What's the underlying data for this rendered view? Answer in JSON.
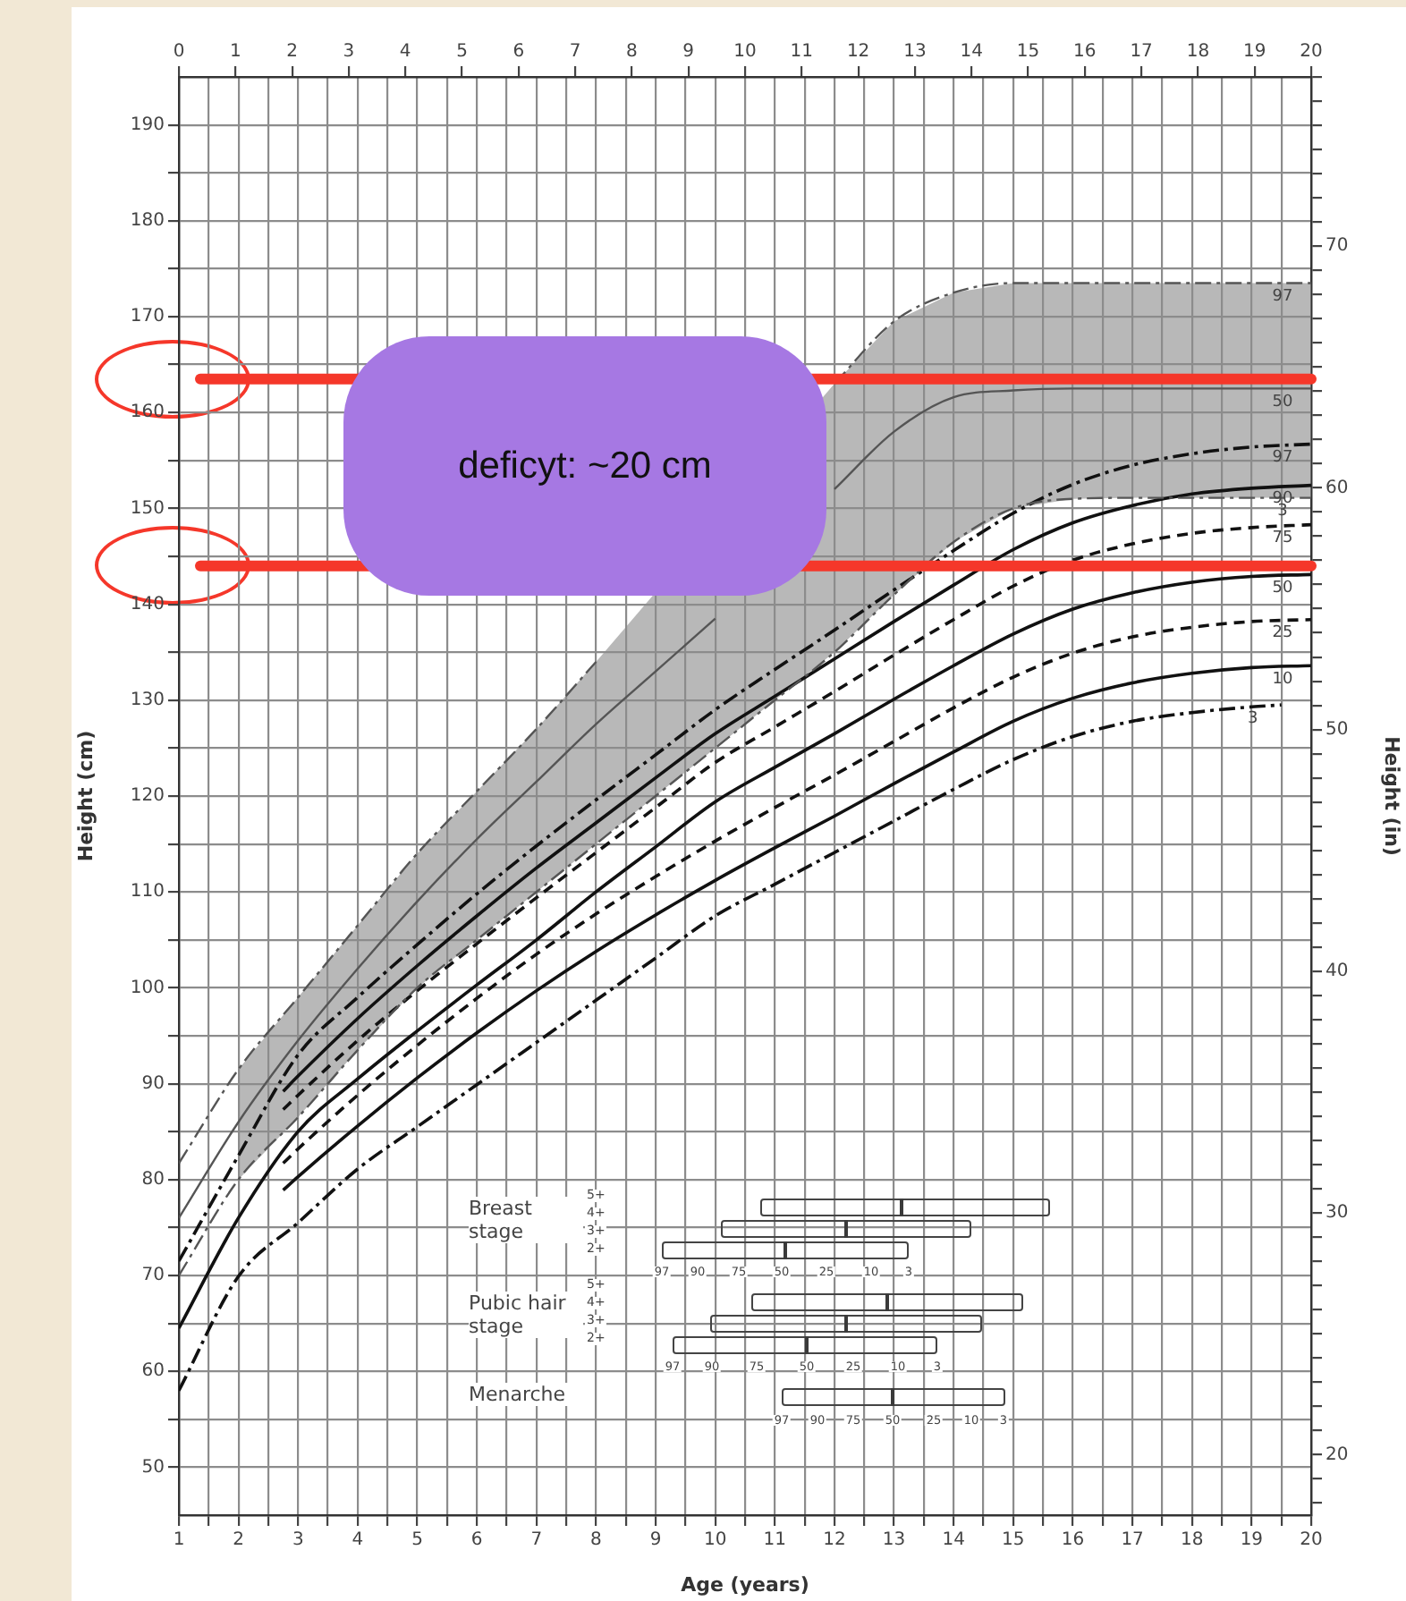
{
  "chart_data": {
    "type": "line",
    "xlabel": "Age (years)",
    "ylabel": "Height (cm)",
    "y2label": "Height (in)",
    "xlim": [
      1,
      20
    ],
    "ylim": [
      45,
      195
    ],
    "x2lim": [
      0,
      20
    ],
    "y2lim": [
      17.5,
      77
    ],
    "xticks": [
      1,
      {
        "value": 1.5,
        "label": null
      },
      2,
      {
        "value": 2.5,
        "label": null
      },
      3,
      {
        "value": 3.5,
        "label": null
      },
      4,
      {
        "value": 4.5,
        "label": null
      },
      5,
      {
        "value": 5.5,
        "label": null
      },
      6,
      {
        "value": 6.5,
        "label": null
      },
      7,
      {
        "value": 7.5,
        "label": null
      },
      8,
      {
        "value": 8.5,
        "label": null
      },
      9,
      {
        "value": 9.5,
        "label": null
      },
      10,
      {
        "value": 10.5,
        "label": null
      },
      11,
      {
        "value": 11.5,
        "label": null
      },
      12,
      {
        "value": 12.5,
        "label": null
      },
      13,
      {
        "value": 13.5,
        "label": null
      },
      14,
      {
        "value": 14.5,
        "label": null
      },
      15,
      {
        "value": 15.5,
        "label": null
      },
      16,
      {
        "value": 16.5,
        "label": null
      },
      17,
      {
        "value": 17.5,
        "label": null
      },
      18,
      {
        "value": 18.5,
        "label": null
      },
      19,
      {
        "value": 19.5,
        "label": null
      },
      20
    ],
    "x2ticks": [
      0,
      1,
      2,
      3,
      4,
      5,
      6,
      7,
      8,
      9,
      10,
      11,
      12,
      13,
      14,
      15,
      16,
      17,
      18,
      19,
      20
    ],
    "yticks": [
      50,
      {
        "value": 55,
        "label": null
      },
      60,
      {
        "value": 65,
        "label": null
      },
      70,
      {
        "value": 75,
        "label": null
      },
      80,
      {
        "value": 85,
        "label": null
      },
      90,
      {
        "value": 95,
        "label": null
      },
      100,
      {
        "value": 105,
        "label": null
      },
      110,
      {
        "value": 115,
        "label": null
      },
      120,
      {
        "value": 125,
        "label": null
      },
      130,
      {
        "value": 135,
        "label": null
      },
      140,
      {
        "value": 145,
        "label": null
      },
      150,
      {
        "value": 155,
        "label": null
      },
      160,
      {
        "value": 165,
        "label": null
      },
      170,
      {
        "value": 175,
        "label": null
      },
      180,
      {
        "value": 185,
        "label": null
      },
      190
    ],
    "y2ticks": [
      {
        "value": 18,
        "label": null
      },
      {
        "value": 19,
        "label": null
      },
      20,
      {
        "value": 21,
        "label": null
      },
      {
        "value": 22,
        "label": null
      },
      {
        "value": 23,
        "label": null
      },
      {
        "value": 24,
        "label": null
      },
      {
        "value": 25,
        "label": null
      },
      {
        "value": 26,
        "label": null
      },
      {
        "value": 27,
        "label": null
      },
      {
        "value": 28,
        "label": null
      },
      {
        "value": 29,
        "label": null
      },
      30,
      {
        "value": 31,
        "label": null
      },
      {
        "value": 32,
        "label": null
      },
      {
        "value": 33,
        "label": null
      },
      {
        "value": 34,
        "label": null
      },
      {
        "value": 35,
        "label": null
      },
      {
        "value": 36,
        "label": null
      },
      {
        "value": 37,
        "label": null
      },
      {
        "value": 38,
        "label": null
      },
      {
        "value": 39,
        "label": null
      },
      40,
      {
        "value": 41,
        "label": null
      },
      {
        "value": 42,
        "label": null
      },
      {
        "value": 43,
        "label": null
      },
      {
        "value": 44,
        "label": null
      },
      {
        "value": 45,
        "label": null
      },
      {
        "value": 46,
        "label": null
      },
      {
        "value": 47,
        "label": null
      },
      {
        "value": 48,
        "label": null
      },
      {
        "value": 49,
        "label": null
      },
      50,
      {
        "value": 51,
        "label": null
      },
      {
        "value": 52,
        "label": null
      },
      {
        "value": 53,
        "label": null
      },
      {
        "value": 54,
        "label": null
      },
      {
        "value": 55,
        "label": null
      },
      {
        "value": 56,
        "label": null
      },
      {
        "value": 57,
        "label": null
      },
      {
        "value": 58,
        "label": null
      },
      {
        "value": 59,
        "label": null
      },
      60,
      {
        "value": 61,
        "label": null
      },
      {
        "value": 62,
        "label": null
      },
      {
        "value": 63,
        "label": null
      },
      {
        "value": 64,
        "label": null
      },
      {
        "value": 65,
        "label": null
      },
      {
        "value": 66,
        "label": null
      },
      {
        "value": 67,
        "label": null
      },
      {
        "value": 68,
        "label": null
      },
      {
        "value": 69,
        "label": null
      },
      70,
      {
        "value": 71,
        "label": null
      },
      {
        "value": 72,
        "label": null
      },
      {
        "value": 73,
        "label": null
      },
      {
        "value": 74,
        "label": null
      },
      {
        "value": 75,
        "label": null
      },
      {
        "value": 76,
        "label": null
      },
      {
        "value": 77,
        "label": null
      }
    ],
    "grid": true,
    "legend": false,
    "series": [
      {
        "name": "97",
        "color": "#555555",
        "line_style": "dotted",
        "x": [
          1,
          2,
          3,
          4,
          5,
          6,
          7,
          8,
          9,
          10,
          11,
          12,
          13,
          14,
          15,
          16,
          17,
          18,
          19,
          20
        ],
        "values": [
          81.7,
          91.5,
          99,
          106.5,
          114,
          120.5,
          127,
          134,
          null,
          null,
          null,
          163,
          169.5,
          172.5,
          173.5,
          173.5,
          173.5,
          173.5,
          173.5,
          173.5
        ]
      },
      {
        "name": "50",
        "color": "#555555",
        "line_style": "solid",
        "x": [
          1,
          2,
          3,
          4,
          5,
          6,
          7,
          8,
          9,
          10,
          11,
          12,
          13,
          14,
          15,
          16,
          17,
          18,
          19,
          20
        ],
        "values": [
          76,
          86,
          94.5,
          102,
          109,
          115.5,
          121.5,
          127.5,
          133,
          138.5,
          null,
          152,
          158,
          161.6,
          162.3,
          162.5,
          162.5,
          162.5,
          162.5,
          162.5
        ],
        "lower": [
          null,
          80,
          86.5,
          93.5,
          100,
          105,
          110,
          115,
          null,
          null,
          null,
          135,
          141,
          146.5,
          150,
          151,
          151.1,
          151.1,
          151.1,
          151.1
        ],
        "upper": [
          null,
          91.5,
          99,
          106.5,
          114,
          120.5,
          127,
          134,
          null,
          null,
          null,
          163,
          169.5,
          172.5,
          173.5,
          173.5,
          173.5,
          173.5,
          173.5,
          173.5
        ]
      },
      {
        "name": "3",
        "color": "#555555",
        "line_style": "dotted",
        "x": [
          1,
          2,
          3,
          4,
          5,
          6,
          7,
          8,
          9,
          10,
          11,
          12,
          13,
          14,
          15,
          16,
          17,
          18,
          19,
          20
        ],
        "values": [
          70,
          80,
          86.5,
          93.5,
          100,
          105,
          110,
          115,
          120,
          125,
          130,
          135,
          141,
          146.5,
          150,
          151,
          151.1,
          151.1,
          151.1,
          151.1
        ]
      },
      {
        "name": "97",
        "color": "#111111",
        "line_style": "dotted",
        "x": [
          1,
          2,
          3,
          4,
          5,
          6,
          7,
          8,
          9,
          10,
          11,
          12,
          13,
          14,
          15,
          16,
          17,
          18,
          19,
          20
        ],
        "values": [
          71.5,
          82.5,
          93,
          99,
          104.5,
          109.8,
          114.8,
          119.6,
          124.3,
          129,
          133.2,
          137.3,
          141.5,
          145.6,
          149.5,
          152.5,
          154.5,
          155.7,
          156.4,
          156.7
        ]
      },
      {
        "name": "90",
        "color": "#111111",
        "line_style": "solid",
        "x": [
          2.75,
          3,
          4,
          5,
          6,
          7,
          8,
          9,
          10,
          11,
          12,
          13,
          14,
          15,
          16,
          17,
          18,
          19,
          20
        ],
        "values": [
          89.2,
          90.8,
          96.8,
          102.3,
          107.5,
          112.5,
          117.2,
          121.9,
          126.5,
          130.4,
          134.3,
          138.2,
          142.0,
          145.7,
          148.5,
          150.3,
          151.5,
          152.1,
          152.4
        ]
      },
      {
        "name": "75",
        "color": "#111111",
        "line_style": "dashed",
        "x": [
          2.75,
          3,
          4,
          5,
          6,
          7,
          8,
          9,
          10,
          11,
          12,
          13,
          14,
          15,
          16,
          17,
          18,
          19,
          20
        ],
        "values": [
          87.3,
          88.8,
          94.5,
          99.7,
          104.6,
          109.4,
          114.1,
          118.8,
          123.5,
          127.2,
          130.9,
          134.7,
          138.4,
          141.9,
          144.6,
          146.3,
          147.4,
          148.0,
          148.3
        ]
      },
      {
        "name": "50",
        "color": "#111111",
        "line_style": "solid",
        "x": [
          1,
          2,
          3,
          4,
          5,
          6,
          7,
          8,
          9,
          10,
          11,
          12,
          13,
          14,
          15,
          16,
          17,
          18,
          19,
          20
        ],
        "values": [
          64.5,
          76,
          85,
          90.5,
          95.5,
          100.3,
          105,
          110,
          114.7,
          119.4,
          123.0,
          126.5,
          130.1,
          133.6,
          136.9,
          139.5,
          141.2,
          142.3,
          142.9,
          143.1
        ]
      },
      {
        "name": "25",
        "color": "#111111",
        "line_style": "dashed",
        "x": [
          2.75,
          3,
          4,
          5,
          6,
          7,
          8,
          9,
          10,
          11,
          12,
          13,
          14,
          15,
          16,
          17,
          18,
          19,
          20
        ],
        "values": [
          81.7,
          83.2,
          88.8,
          94,
          98.9,
          103.5,
          107.7,
          111.6,
          115.3,
          118.8,
          122.2,
          125.7,
          129.2,
          132.4,
          134.9,
          136.6,
          137.6,
          138.2,
          138.4
        ]
      },
      {
        "name": "10",
        "color": "#111111",
        "line_style": "solid",
        "x": [
          2.75,
          3,
          4,
          5,
          6,
          7,
          8,
          9,
          10,
          11,
          12,
          13,
          14,
          15,
          16,
          17,
          18,
          19,
          20
        ],
        "values": [
          78.9,
          80.3,
          85.6,
          90.6,
          95.3,
          99.7,
          103.8,
          107.6,
          111.2,
          114.6,
          117.9,
          121.3,
          124.6,
          127.8,
          130.2,
          131.8,
          132.8,
          133.4,
          133.6
        ]
      },
      {
        "name": "3",
        "color": "#111111",
        "line_style": "dotted",
        "x": [
          1,
          2,
          3,
          4,
          5,
          6,
          7,
          8,
          9,
          10,
          11,
          12,
          13,
          14,
          15,
          16,
          17,
          18,
          19,
          19.5
        ],
        "values": [
          58,
          69.9,
          75.5,
          81.1,
          85.5,
          89.9,
          94.3,
          98.7,
          103.1,
          107.5,
          110.8,
          114.1,
          117.4,
          120.7,
          123.8,
          126.2,
          127.8,
          128.7,
          129.3,
          129.5
        ]
      }
    ],
    "ref_lines": [
      {
        "axis": "y",
        "value": 163.5,
        "color": "#f5372a"
      },
      {
        "axis": "y",
        "value": 144,
        "color": "#f5372a"
      }
    ],
    "annotations": [
      "deficyt: ~20 cm",
      "Breast stage",
      "5+",
      "4+",
      "3+",
      "2+",
      "97",
      "90",
      "75",
      "50",
      "25",
      "10",
      "3",
      "Pubic hair stage",
      "5+",
      "4+",
      "3+",
      "2+",
      "97",
      "90",
      "75",
      "50",
      "25",
      "10",
      "3",
      "Menarche",
      "97",
      "90",
      "75",
      "50",
      "25",
      "10",
      "3"
    ]
  }
}
